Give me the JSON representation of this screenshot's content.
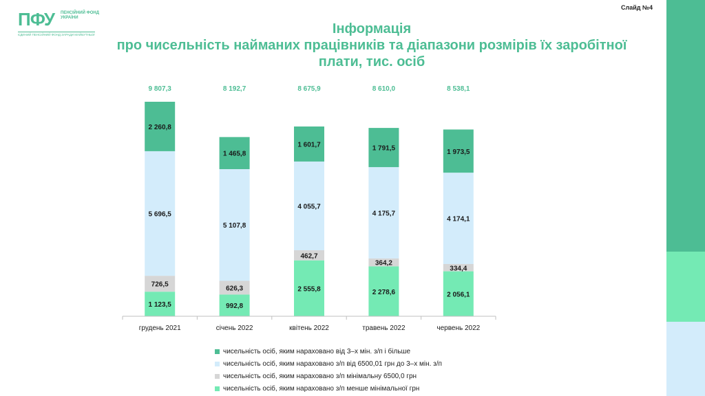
{
  "logo": {
    "mark": "ПФУ",
    "text": "ПЕНСІЙНИЙ ФОНД УКРАЇНИ",
    "tagline": "ЄДИНИЙ ПЕНСІЙНИЙ ФОНД ЗАРАДИ МАЙБУТНЬОГО"
  },
  "slide_number": "Слайд №4",
  "title_line1": "Інформація",
  "title_line2": "про чисельність найманих працівників та діапазони розмірів їх заробітної плати, тис. осіб",
  "colors": {
    "accent": "#4dbd94",
    "stripe_top": "#4dbd94",
    "stripe_middle": "#74eab4",
    "stripe_bottom": "#d3ecfb"
  },
  "chart_data": {
    "type": "bar",
    "stacked": true,
    "categories": [
      "грудень 2021",
      "січень 2022",
      "квітень 2022",
      "травень 2022",
      "червень 2022"
    ],
    "totals": [
      9807.3,
      8192.7,
      8675.9,
      8610.0,
      8538.1
    ],
    "total_labels": [
      "9 807,3",
      "8 192,7",
      "8 675,9",
      "8 610,0",
      "8 538,1"
    ],
    "series": [
      {
        "name": "чисельність осіб, яким нараховано з/п менше мінімальної грн",
        "color": "#74eab4",
        "values": [
          1123.5,
          992.8,
          2555.8,
          2278.6,
          2056.1
        ],
        "labels": [
          "1 123,5",
          "992,8",
          "2 555,8",
          "2 278,6",
          "2 056,1"
        ]
      },
      {
        "name": "чисельність осіб, яким нараховано з/п  мінімальну 6500,0 грн",
        "color": "#d6d6d6",
        "values": [
          726.5,
          626.3,
          462.7,
          364.2,
          334.4
        ],
        "labels": [
          "726,5",
          "626,3",
          "462,7",
          "364,2",
          "334,4"
        ]
      },
      {
        "name": "чисельність осіб, яким нараховано з/п від 6500,01 грн до 3–х мін. з/п",
        "color": "#d3ecfb",
        "values": [
          5696.5,
          5107.8,
          4055.7,
          4175.7,
          4174.1
        ],
        "labels": [
          "5 696,5",
          "5 107,8",
          "4 055,7",
          "4 175,7",
          "4 174,1"
        ]
      },
      {
        "name": "чисельність осіб, яким нараховано від 3–х мін. з/п і більше",
        "color": "#4dbd94",
        "values": [
          2260.8,
          1465.8,
          1601.7,
          1791.5,
          1973.5
        ],
        "labels": [
          "2 260,8",
          "1 465,8",
          "1 601,7",
          "1 791,5",
          "1 973,5"
        ]
      }
    ],
    "legend_order": [
      3,
      2,
      1,
      0
    ],
    "legend_position": "bottom",
    "grid": false
  }
}
